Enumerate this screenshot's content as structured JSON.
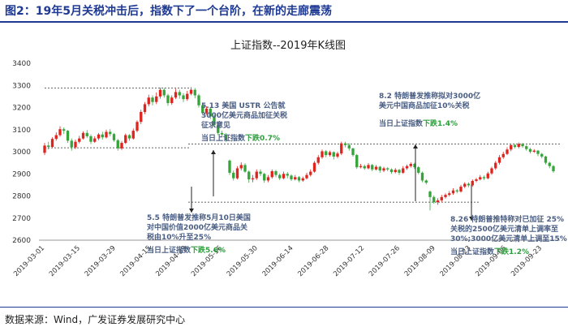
{
  "figure_title": "图2：19年5月关税冲击后，指数下了一个台阶，在新的走廊震荡",
  "source": "数据来源：Wind，广发证券发展研究中心",
  "colors": {
    "up": "#e0231c",
    "down": "#35a53a",
    "title_blue": "#1f3a93",
    "annotation": "#4a5e84",
    "green_text": "#2e9e3e"
  },
  "chart_data": {
    "type": "candlestick",
    "title": "上证指数--2019年K线图",
    "ylim": [
      2600,
      3400
    ],
    "yticks": [
      2600,
      2700,
      2800,
      2900,
      3000,
      3100,
      3200,
      3300,
      3400
    ],
    "xticks": [
      "2019-03-01",
      "2019-03-15",
      "2019-03-29",
      "2019-04-15",
      "2019-04-29",
      "2019-05-16",
      "2019-05-30",
      "2019-06-14",
      "2019-06-28",
      "2019-07-12",
      "2019-07-26",
      "2019-08-09",
      "2019-08-23",
      "2019-09-06",
      "2019-09-23"
    ],
    "reference_lines": [
      {
        "name": "upper-march-april",
        "value": 3288
      },
      {
        "name": "lower-march-april",
        "value": 3018
      },
      {
        "name": "upper-corridor",
        "value": 3035
      },
      {
        "name": "lower-corridor",
        "value": 2772
      }
    ],
    "candles": [
      [
        2995,
        3028,
        3040,
        2985
      ],
      [
        3028,
        3022,
        3045,
        3010
      ],
      [
        3022,
        3058,
        3065,
        3018
      ],
      [
        3058,
        3075,
        3088,
        3050
      ],
      [
        3075,
        3102,
        3115,
        3068
      ],
      [
        3102,
        3095,
        3110,
        3080
      ],
      [
        3095,
        3050,
        3098,
        3040
      ],
      [
        3050,
        3020,
        3060,
        3005
      ],
      [
        3020,
        3045,
        3055,
        3012
      ],
      [
        3045,
        3060,
        3072,
        3038
      ],
      [
        3060,
        3085,
        3092,
        3055
      ],
      [
        3085,
        3070,
        3098,
        3062
      ],
      [
        3070,
        3045,
        3078,
        3035
      ],
      [
        3045,
        3060,
        3070,
        3040
      ],
      [
        3060,
        3078,
        3085,
        3052
      ],
      [
        3078,
        3065,
        3090,
        3055
      ],
      [
        3065,
        3090,
        3100,
        3060
      ],
      [
        3090,
        3080,
        3102,
        3070
      ],
      [
        3080,
        3052,
        3085,
        3045
      ],
      [
        3052,
        3015,
        3058,
        3005
      ],
      [
        3015,
        3040,
        3048,
        3008
      ],
      [
        3040,
        3075,
        3082,
        3035
      ],
      [
        3075,
        3060,
        3080,
        3050
      ],
      [
        3060,
        3095,
        3105,
        3055
      ],
      [
        3095,
        3135,
        3142,
        3088
      ],
      [
        3135,
        3180,
        3190,
        3125
      ],
      [
        3180,
        3215,
        3225,
        3170
      ],
      [
        3215,
        3245,
        3258,
        3205
      ],
      [
        3245,
        3225,
        3255,
        3210
      ],
      [
        3225,
        3250,
        3268,
        3215
      ],
      [
        3250,
        3280,
        3290,
        3240
      ],
      [
        3280,
        3255,
        3288,
        3245
      ],
      [
        3255,
        3220,
        3262,
        3208
      ],
      [
        3220,
        3245,
        3255,
        3212
      ],
      [
        3245,
        3270,
        3285,
        3238
      ],
      [
        3270,
        3255,
        3280,
        3240
      ],
      [
        3255,
        3238,
        3265,
        3225
      ],
      [
        3238,
        3262,
        3275,
        3230
      ],
      [
        3262,
        3280,
        3292,
        3255
      ],
      [
        3280,
        3255,
        3288,
        3242
      ],
      [
        3255,
        3210,
        3262,
        3200
      ],
      [
        3210,
        3175,
        3218,
        3165
      ],
      [
        3175,
        3195,
        3205,
        3168
      ],
      [
        3195,
        3160,
        3200,
        3148
      ],
      [
        3160,
        3120,
        3168,
        3110
      ],
      [
        3120,
        3085,
        3128,
        3075
      ],
      [
        3085,
        3078,
        3095,
        3068
      ],
      [
        3078,
        3055,
        3085,
        3045
      ],
      [
        2960,
        2905,
        2965,
        2895
      ],
      [
        2905,
        2880,
        2915,
        2870
      ],
      [
        2880,
        2925,
        2935,
        2875
      ],
      [
        2925,
        2940,
        2952,
        2915
      ],
      [
        2940,
        2910,
        2948,
        2905
      ],
      [
        2910,
        2875,
        2915,
        2860
      ],
      [
        2875,
        2880,
        2895,
        2862
      ],
      [
        2880,
        2910,
        2920,
        2872
      ],
      [
        2910,
        2900,
        2920,
        2890
      ],
      [
        2900,
        2870,
        2905,
        2860
      ],
      [
        2870,
        2885,
        2895,
        2862
      ],
      [
        2885,
        2912,
        2920,
        2878
      ],
      [
        2912,
        2895,
        2918,
        2885
      ],
      [
        2895,
        2880,
        2902,
        2872
      ],
      [
        2880,
        2900,
        2910,
        2875
      ],
      [
        2900,
        2892,
        2908,
        2880
      ],
      [
        2892,
        2875,
        2898,
        2868
      ],
      [
        2875,
        2885,
        2895,
        2870
      ],
      [
        2885,
        2870,
        2890,
        2862
      ],
      [
        2870,
        2880,
        2888,
        2864
      ],
      [
        2880,
        2895,
        2905,
        2875
      ],
      [
        2895,
        2910,
        2920,
        2888
      ],
      [
        2910,
        2950,
        2958,
        2905
      ],
      [
        2950,
        2975,
        2985,
        2942
      ],
      [
        2975,
        3002,
        3010,
        2968
      ],
      [
        3002,
        2985,
        3008,
        2975
      ],
      [
        2985,
        2998,
        3005,
        2978
      ],
      [
        2998,
        2978,
        3002,
        2965
      ],
      [
        2978,
        2992,
        3000,
        2970
      ],
      [
        2992,
        3038,
        3045,
        2985
      ],
      [
        3038,
        3030,
        3045,
        3020
      ],
      [
        3030,
        3015,
        3038,
        3005
      ],
      [
        3015,
        2985,
        3018,
        2978
      ],
      [
        2985,
        2930,
        2990,
        2922
      ],
      [
        2930,
        2935,
        2945,
        2925
      ],
      [
        2935,
        2925,
        2942,
        2918
      ],
      [
        2925,
        2940,
        2948,
        2920
      ],
      [
        2940,
        2920,
        2945,
        2912
      ],
      [
        2920,
        2932,
        2940,
        2915
      ],
      [
        2932,
        2915,
        2936,
        2905
      ],
      [
        2915,
        2925,
        2932,
        2908
      ],
      [
        2925,
        2920,
        2930,
        2912
      ],
      [
        2920,
        2908,
        2925,
        2900
      ],
      [
        2908,
        2918,
        2926,
        2902
      ],
      [
        2918,
        2905,
        2922,
        2895
      ],
      [
        2905,
        2925,
        2935,
        2900
      ],
      [
        2925,
        2935,
        2942,
        2918
      ],
      [
        2935,
        2945,
        2952,
        2928
      ],
      [
        2945,
        2930,
        2950,
        2922
      ],
      [
        2930,
        2905,
        2935,
        2898
      ],
      [
        2905,
        2870,
        2910,
        2862
      ],
      [
        2870,
        2860,
        2875,
        2852
      ],
      [
        2820,
        2795,
        2825,
        2735
      ],
      [
        2795,
        2772,
        2802,
        2765
      ],
      [
        2772,
        2780,
        2790,
        2760
      ],
      [
        2780,
        2795,
        2805,
        2772
      ],
      [
        2795,
        2805,
        2812,
        2788
      ],
      [
        2805,
        2812,
        2822,
        2798
      ],
      [
        2812,
        2825,
        2835,
        2805
      ],
      [
        2825,
        2820,
        2832,
        2812
      ],
      [
        2820,
        2842,
        2850,
        2815
      ],
      [
        2842,
        2855,
        2862,
        2835
      ],
      [
        2855,
        2848,
        2862,
        2840
      ],
      [
        2848,
        2868,
        2875,
        2842
      ],
      [
        2868,
        2875,
        2882,
        2862
      ],
      [
        2875,
        2885,
        2895,
        2870
      ],
      [
        2885,
        2880,
        2892,
        2872
      ],
      [
        2880,
        2902,
        2910,
        2875
      ],
      [
        2902,
        2925,
        2932,
        2895
      ],
      [
        2925,
        2950,
        2958,
        2918
      ],
      [
        2950,
        2975,
        2985,
        2942
      ],
      [
        2975,
        2990,
        3000,
        2968
      ],
      [
        2990,
        3010,
        3020,
        2985
      ],
      [
        3010,
        3030,
        3035,
        3002
      ],
      [
        3030,
        3022,
        3035,
        3015
      ],
      [
        3022,
        3035,
        3042,
        3015
      ],
      [
        3035,
        3025,
        3040,
        3018
      ],
      [
        3025,
        3012,
        3030,
        3005
      ],
      [
        3012,
        3000,
        3018,
        2992
      ],
      [
        3000,
        3005,
        3012,
        2995
      ],
      [
        3005,
        2990,
        3008,
        2980
      ],
      [
        2990,
        2978,
        2995,
        2970
      ],
      [
        2978,
        2950,
        2982,
        2942
      ],
      [
        2950,
        2935,
        2955,
        2925
      ],
      [
        2935,
        2912,
        2940,
        2905
      ]
    ],
    "gap_after_index": 47,
    "gap2_after_index": 99,
    "annotations": [
      {
        "lines": [
          "5.13 美国 USTR 公告就",
          "3000亿美元商品加征关税",
          "征求意见"
        ],
        "prefix": "当日上证指数",
        "verb": "下跌",
        "pct": "0.7%"
      },
      {
        "lines": [
          "5.5 特朗普发推称5月10日美国",
          "对中国价值2000亿美元商品关",
          "税由10%升至25%"
        ],
        "prefix": "当日上证指数",
        "verb": "下跌",
        "pct": "5.6%"
      },
      {
        "lines": [
          "8.2 特朗普发推称拟对3000亿",
          "美元中国商品加征10%关税"
        ],
        "prefix": "当日上证指数",
        "verb": "下跌",
        "pct": "1.4%"
      },
      {
        "lines": [
          "8.26 特朗普推特称对已加征 25%",
          "关税的2500亿美元清单上调率至",
          "30%;3000亿美元清单上调至15%"
        ],
        "prefix": "当日上证指数",
        "verb": "下跌",
        "pct": "1.2%"
      }
    ]
  }
}
